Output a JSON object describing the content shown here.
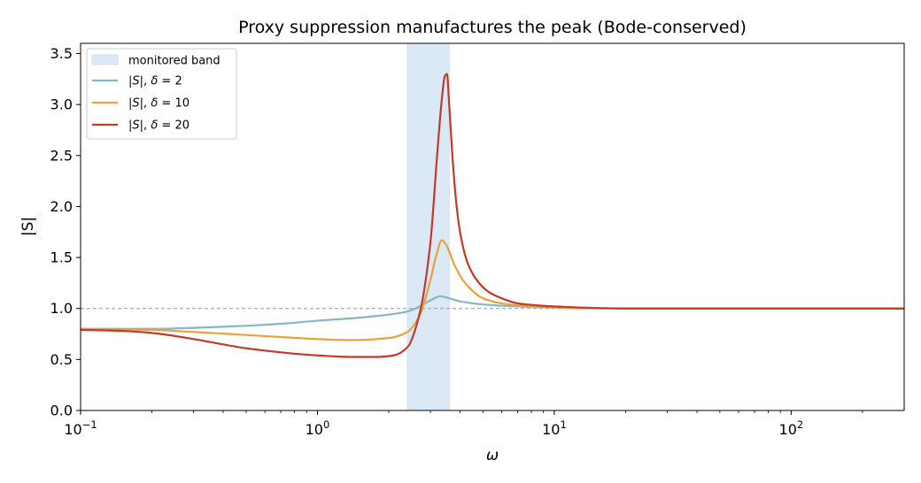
{
  "chart_data": {
    "type": "line",
    "title": "Proxy suppression manufactures the peak (Bode-conserved)",
    "xlabel": "ω",
    "ylabel": "|S|",
    "xscale": "log",
    "xlim": [
      0.1,
      300
    ],
    "ylim": [
      0.0,
      3.6
    ],
    "grid": false,
    "legend_position": "upper-left",
    "x_ticks": [
      {
        "value": 0.1,
        "base": "10",
        "exp": "−1"
      },
      {
        "value": 1,
        "base": "10",
        "exp": "0"
      },
      {
        "value": 10,
        "base": "10",
        "exp": "1"
      },
      {
        "value": 100,
        "base": "10",
        "exp": "2"
      }
    ],
    "y_ticks": [
      "0.0",
      "0.5",
      "1.0",
      "1.5",
      "2.0",
      "2.5",
      "3.0",
      "3.5"
    ],
    "band": {
      "name": "monitored band",
      "x_range": [
        2.4,
        3.6
      ],
      "color": "#dbe9f6"
    },
    "reference_line": {
      "y": 1.0,
      "style": "dashed",
      "color": "#999999"
    },
    "series": [
      {
        "name": "|S|, δ = 2",
        "legend": {
          "pre": "|",
          "var": "S",
          "mid": "|, ",
          "greek": "δ",
          "post": " = 2"
        },
        "color": "#86b7c6",
        "x": [
          0.1,
          0.2,
          0.3,
          0.5,
          0.7,
          1.0,
          1.5,
          2.0,
          2.4,
          2.7,
          3.0,
          3.3,
          3.6,
          4.0,
          5.0,
          7.0,
          10,
          20,
          50,
          100,
          300
        ],
        "y": [
          0.8,
          0.8,
          0.81,
          0.83,
          0.85,
          0.88,
          0.91,
          0.94,
          0.97,
          1.02,
          1.08,
          1.12,
          1.1,
          1.07,
          1.04,
          1.02,
          1.01,
          1.0,
          1.0,
          1.0,
          1.0
        ]
      },
      {
        "name": "|S|, δ = 10",
        "legend": {
          "pre": "|",
          "var": "S",
          "mid": "|, ",
          "greek": "δ",
          "post": " = 10"
        },
        "color": "#e8a23c",
        "x": [
          0.1,
          0.2,
          0.3,
          0.5,
          0.7,
          1.0,
          1.4,
          2.0,
          2.4,
          2.7,
          3.0,
          3.2,
          3.35,
          3.5,
          3.8,
          4.2,
          5.0,
          6.0,
          8.0,
          10,
          20,
          50,
          100,
          300
        ],
        "y": [
          0.8,
          0.79,
          0.77,
          0.74,
          0.72,
          0.7,
          0.69,
          0.71,
          0.77,
          0.93,
          1.28,
          1.55,
          1.67,
          1.62,
          1.42,
          1.25,
          1.1,
          1.05,
          1.02,
          1.01,
          1.0,
          1.0,
          1.0,
          1.0
        ]
      },
      {
        "name": "|S|, δ = 20",
        "legend": {
          "pre": "|",
          "var": "S",
          "mid": "|, ",
          "greek": "δ",
          "post": " = 20"
        },
        "color": "#c0392b",
        "x": [
          0.1,
          0.15,
          0.2,
          0.3,
          0.5,
          0.7,
          1.0,
          1.4,
          1.8,
          2.1,
          2.4,
          2.7,
          3.0,
          3.2,
          3.35,
          3.45,
          3.52,
          3.6,
          3.7,
          3.85,
          4.0,
          4.3,
          4.7,
          5.3,
          6.0,
          7.0,
          8.5,
          10,
          20,
          50,
          100,
          300
        ],
        "y": [
          0.79,
          0.78,
          0.76,
          0.7,
          0.61,
          0.57,
          0.54,
          0.525,
          0.525,
          0.54,
          0.62,
          0.95,
          1.65,
          2.5,
          3.05,
          3.28,
          3.3,
          3.0,
          2.55,
          2.05,
          1.75,
          1.45,
          1.28,
          1.16,
          1.1,
          1.05,
          1.03,
          1.02,
          1.0,
          1.0,
          1.0,
          1.0
        ]
      }
    ]
  }
}
